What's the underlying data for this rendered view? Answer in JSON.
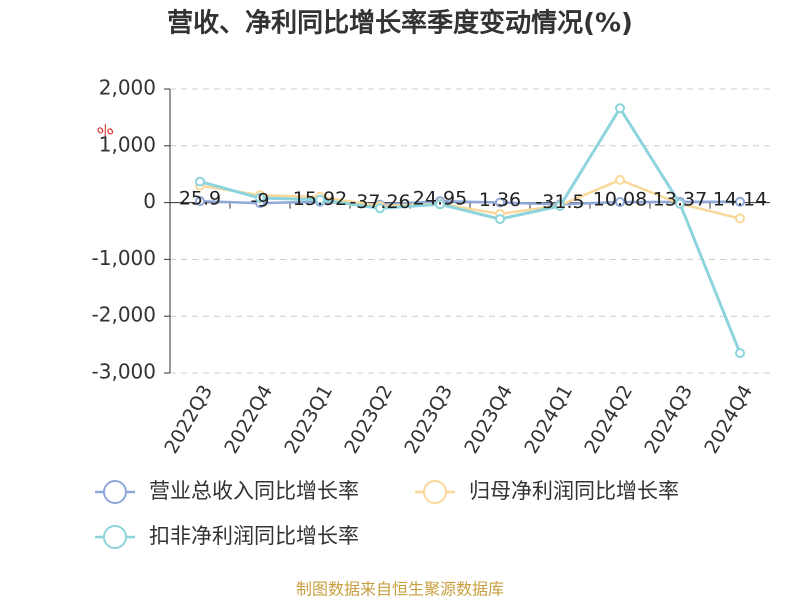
{
  "chart_data": {
    "type": "line",
    "title": "营收、净利同比增长率季度变动情况(%)",
    "y_label": "%",
    "source": "制图数据来自恒生聚源数据库",
    "categories": [
      "2022Q3",
      "2022Q4",
      "2023Q1",
      "2023Q2",
      "2023Q3",
      "2023Q4",
      "2024Q1",
      "2024Q2",
      "2024Q3",
      "2024Q4"
    ],
    "series": [
      {
        "name": "营业总收入同比增长率",
        "color": "#8fa8d8",
        "values": [
          25.9,
          -9,
          15.92,
          -37.26,
          24.95,
          1.36,
          -31.5,
          10.08,
          13.37,
          14.14
        ]
      },
      {
        "name": "归母净利润同比增长率",
        "color": "#f9d89a",
        "values": [
          300,
          130,
          100,
          -60,
          -20,
          -200,
          -50,
          400,
          -20,
          -280
        ]
      },
      {
        "name": "扣非净利润同比增长率",
        "color": "#8dd4dc",
        "values": [
          370,
          80,
          50,
          -100,
          -30,
          -290,
          -60,
          1660,
          -20,
          -2650
        ]
      }
    ],
    "ylim": [
      -3000,
      2000
    ],
    "yticks": [
      {
        "value": -3000,
        "label": "-3,000"
      },
      {
        "value": -2000,
        "label": "-2,000"
      },
      {
        "value": -1000,
        "label": "-1,000"
      },
      0,
      {
        "value": 1000,
        "label": "1,000"
      },
      {
        "value": 2000,
        "label": "2,000"
      }
    ],
    "grid": true
  }
}
